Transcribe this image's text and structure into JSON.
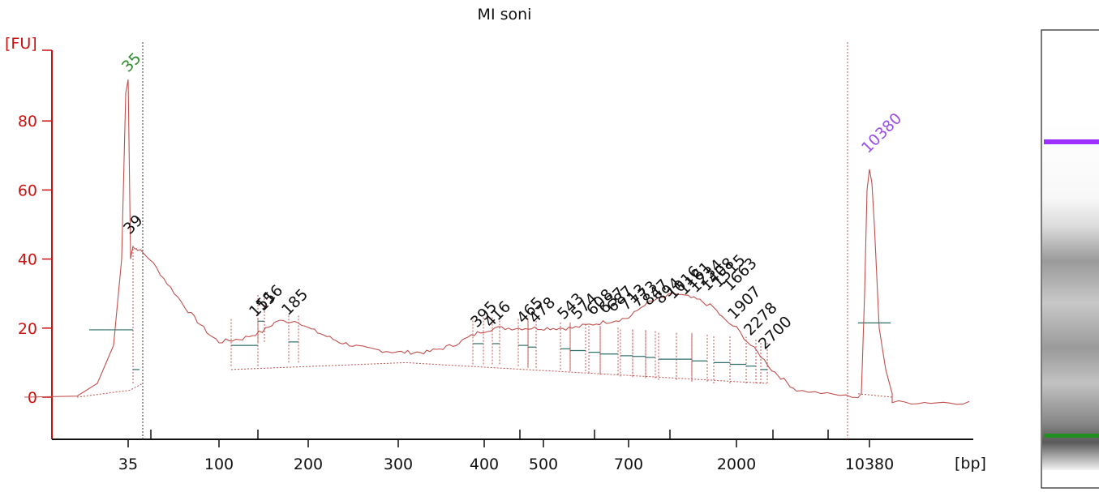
{
  "chart_data": {
    "type": "line",
    "title": "MI soni",
    "ylabel": "[FU]",
    "xlabel": "[bp]",
    "ylim": [
      -12,
      100
    ],
    "y_ticks": [
      "0",
      "20",
      "40",
      "60",
      "80"
    ],
    "x_ticks": [
      "35",
      "100",
      "200",
      "300",
      "400",
      "500",
      "700",
      "2000",
      "10380"
    ],
    "marker_labels": [
      {
        "text": "35",
        "color": "#2e8b2e"
      },
      {
        "text": "10380",
        "color": "#9b4dea"
      }
    ],
    "peak_labels": [
      "39",
      "151",
      "156",
      "185",
      "395",
      "416",
      "465",
      "478",
      "543",
      "574",
      "608",
      "637",
      "687",
      "713",
      "773",
      "847",
      "894",
      "1016",
      "1161",
      "1234",
      "1408",
      "1515",
      "1663",
      "1907",
      "2278",
      "2700"
    ],
    "series": [
      {
        "values_note": "",
        "x": [
          35,
          36,
          37,
          38,
          39,
          45,
          55,
          70,
          90,
          100,
          120,
          140,
          151,
          156,
          170,
          185,
          200,
          230,
          260,
          300,
          330,
          360,
          395,
          416,
          450,
          478,
          520,
          560,
          600,
          650,
          700,
          760,
          820,
          900,
          1000,
          1100,
          1250,
          1400,
          1600,
          1800,
          2000,
          2300,
          2700,
          3100,
          3600,
          4200,
          10380,
          15000
        ],
        "values": [
          92,
          40,
          44,
          43,
          43,
          40,
          33,
          25,
          18,
          16,
          17,
          19,
          21,
          22,
          22,
          22,
          20,
          16,
          14,
          13,
          13,
          15,
          19,
          20,
          20,
          20,
          20,
          20,
          21,
          22,
          23,
          25,
          27,
          28,
          29,
          30,
          29,
          28,
          26,
          22,
          20,
          16,
          12,
          8,
          5,
          2,
          66,
          -2
        ]
      }
    ]
  }
}
